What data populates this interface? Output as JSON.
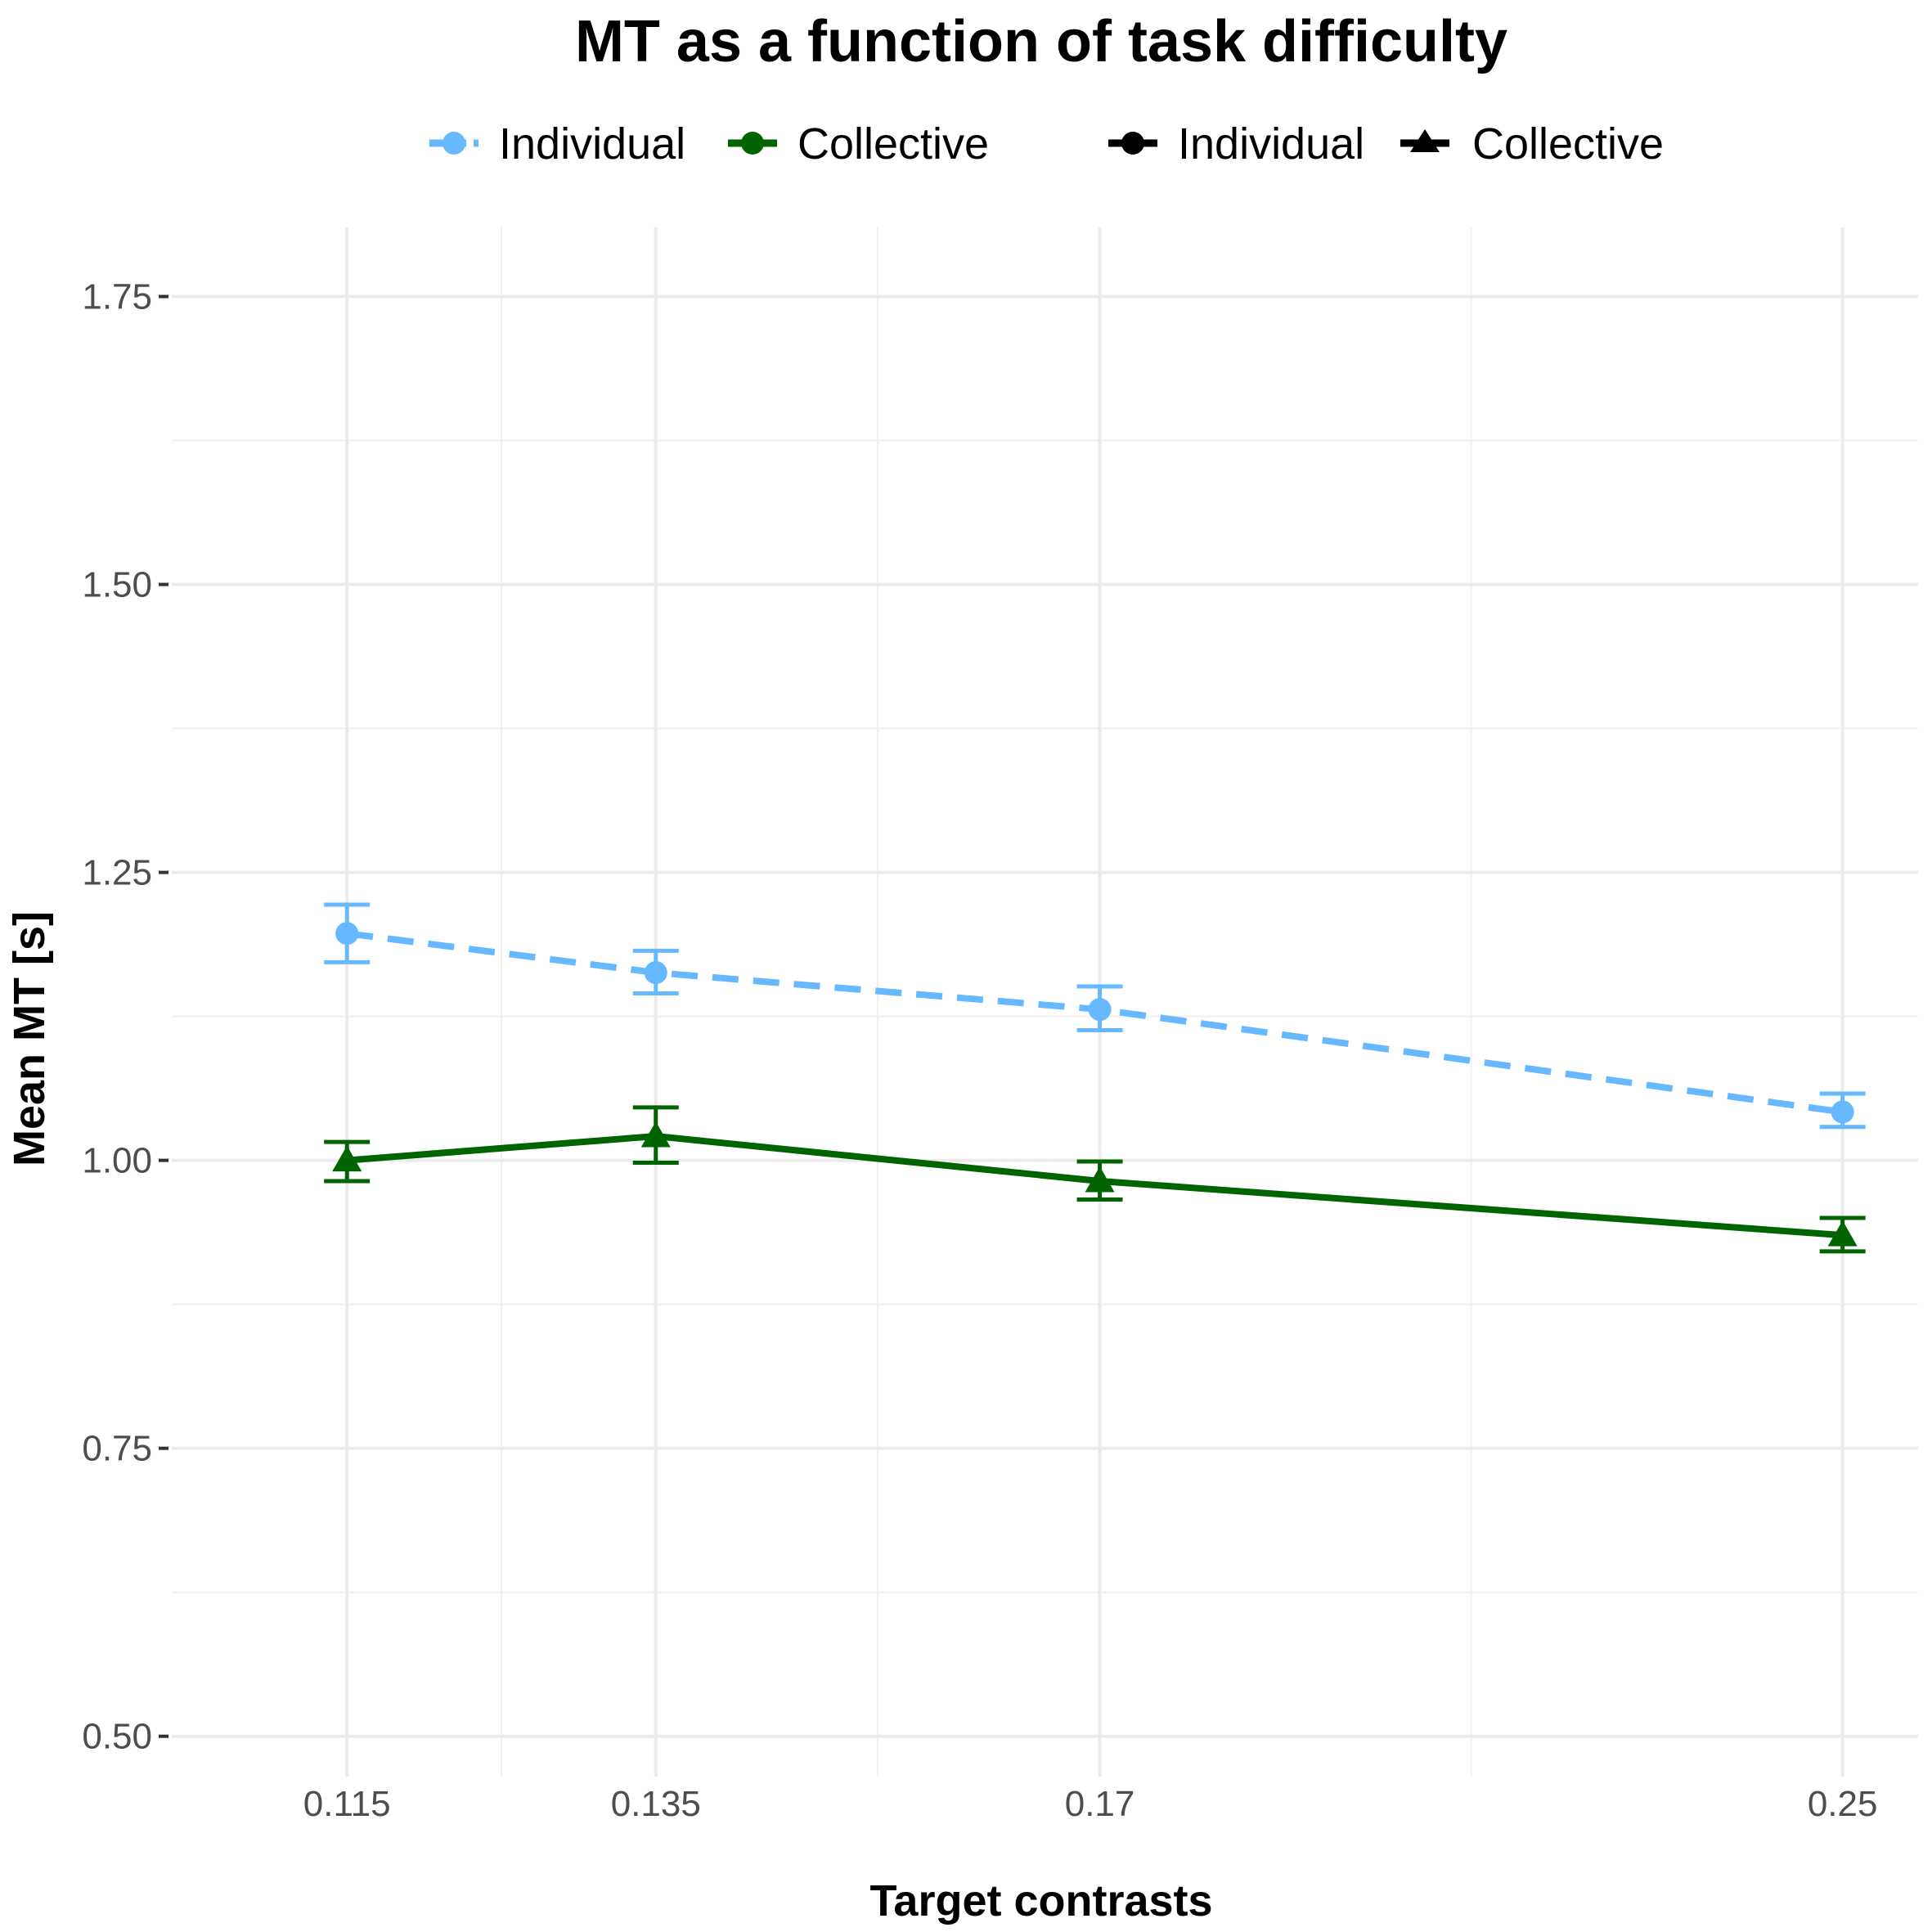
{
  "chart_data": {
    "type": "line",
    "title": "MT  as a function of task difficulty",
    "xlabel": "Target contrasts",
    "ylabel": "Mean  MT  [s]",
    "x": [
      0.115,
      0.135,
      0.17,
      0.25
    ],
    "x_tick_labels": [
      "0.115",
      "0.135",
      "0.17",
      "0.25"
    ],
    "y_ticks": [
      0.5,
      0.75,
      1.0,
      1.25,
      1.5,
      1.75
    ],
    "y_tick_labels": [
      "0.50",
      "0.75",
      "1.00",
      "1.25",
      "1.50",
      "1.75"
    ],
    "xlim": [
      0.105,
      0.26
    ],
    "ylim": [
      0.465,
      1.81
    ],
    "grid": true,
    "legend_position": "top",
    "series": [
      {
        "name": "Individual",
        "color": "#66b8ff",
        "line_style": "dashed",
        "marker": "circle",
        "values": [
          1.197,
          1.163,
          1.131,
          1.042
        ],
        "error_low": [
          1.172,
          1.145,
          1.113,
          1.029
        ],
        "error_high": [
          1.222,
          1.182,
          1.151,
          1.058
        ]
      },
      {
        "name": "Collective",
        "color": "#006400",
        "line_style": "solid",
        "marker": "triangle",
        "values": [
          1.0,
          1.021,
          0.982,
          0.935
        ],
        "error_low": [
          0.982,
          0.998,
          0.966,
          0.921
        ],
        "error_high": [
          1.016,
          1.046,
          0.999,
          0.95
        ]
      }
    ],
    "legend": {
      "color_entries": [
        {
          "label": "Individual",
          "color": "#66b8ff",
          "line_style": "dashed"
        },
        {
          "label": "Collective",
          "color": "#006400",
          "line_style": "solid"
        }
      ],
      "shape_entries": [
        {
          "label": "Individual",
          "marker": "circle"
        },
        {
          "label": "Collective",
          "marker": "triangle"
        }
      ]
    }
  }
}
